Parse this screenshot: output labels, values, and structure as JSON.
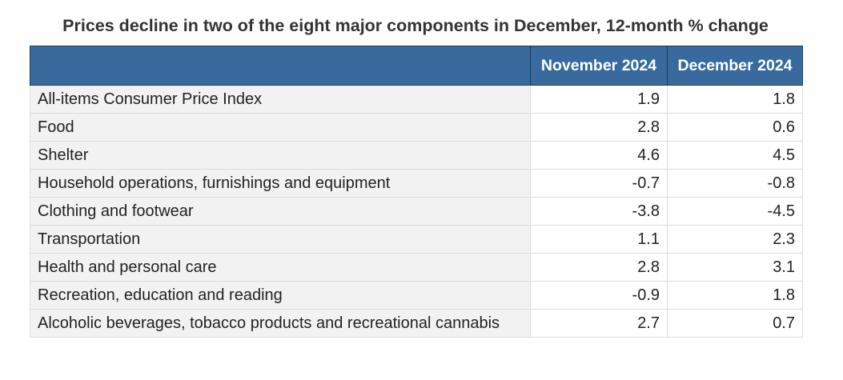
{
  "title": "Prices decline in two of the eight major components in December, 12-month % change",
  "table": {
    "columns": [
      "November 2024",
      "December 2024"
    ],
    "rows": [
      [
        "All-items Consumer Price Index",
        1.9,
        1.8
      ],
      [
        "Food",
        2.8,
        0.6
      ],
      [
        "Shelter",
        4.6,
        4.5
      ],
      [
        "Household operations, furnishings and equipment",
        -0.7,
        -0.8
      ],
      [
        "Clothing and footwear",
        -3.8,
        -4.5
      ],
      [
        "Transportation",
        1.1,
        2.3
      ],
      [
        "Health and personal care",
        2.8,
        3.1
      ],
      [
        "Recreation, education and reading",
        -0.9,
        1.8
      ],
      [
        "Alcoholic beverages, tobacco products and recreational cannabis",
        2.7,
        0.7
      ]
    ]
  }
}
